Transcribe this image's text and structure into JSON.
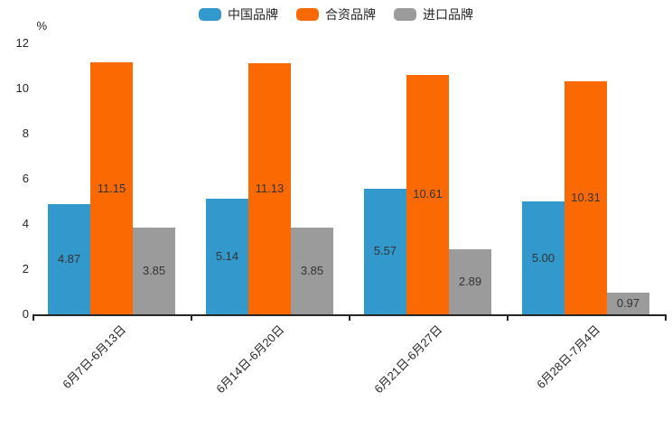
{
  "chart_data": {
    "type": "bar",
    "title": "",
    "categories": [
      "6月7日-6月13日",
      "6月14日-6月20日",
      "6月21日-6月27日",
      "6月28日-7月4日"
    ],
    "series": [
      {
        "name": "中国品牌",
        "color": "#3398cb",
        "values": [
          4.87,
          5.14,
          5.57,
          5.0
        ]
      },
      {
        "name": "合资品牌",
        "color": "#fb6a02",
        "values": [
          11.15,
          11.13,
          10.61,
          10.31
        ]
      },
      {
        "name": "进口品牌",
        "color": "#9b9b9b",
        "values": [
          3.85,
          3.85,
          2.89,
          0.97
        ]
      }
    ],
    "xlabel": "",
    "ylabel": "%",
    "ylim": [
      0,
      12
    ],
    "yticks": [
      0,
      2,
      4,
      6,
      8,
      10,
      12
    ],
    "xtick_rotation": 45,
    "grid": false,
    "legend_position": "top",
    "value_label_format": "2-decimals-inside-center",
    "colors": {
      "axis": "#262626",
      "tick_label": "#262626",
      "value_label": "#333333",
      "background": "#ffffff"
    }
  }
}
